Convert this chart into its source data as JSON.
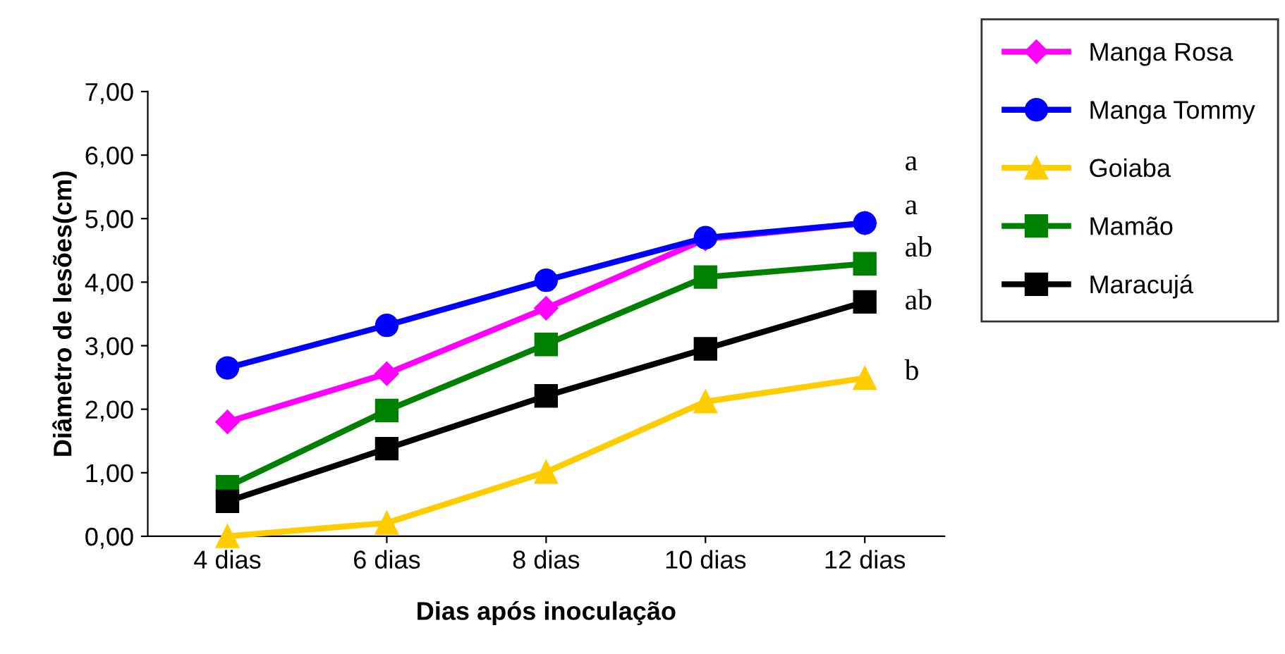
{
  "chart_data": {
    "type": "line",
    "xlabel": "Dias após inoculação",
    "ylabel": "Diâmetro de lesões(cm)",
    "categories": [
      "4 dias",
      "6 dias",
      "8 dias",
      "10 dias",
      "12 dias"
    ],
    "series": [
      {
        "name": "Manga Rosa",
        "color": "#ff00ff",
        "marker": "diamond",
        "values": [
          1.8,
          2.56,
          3.59,
          4.68,
          4.93
        ]
      },
      {
        "name": "Manga Tommy",
        "color": "#0000ff",
        "marker": "circle",
        "values": [
          2.65,
          3.32,
          4.03,
          4.7,
          4.93
        ]
      },
      {
        "name": "Goiaba",
        "color": "#ffcc00",
        "marker": "triangle",
        "values": [
          0.0,
          0.21,
          1.01,
          2.12,
          2.49
        ]
      },
      {
        "name": "Mamão",
        "color": "#008000",
        "marker": "square",
        "values": [
          0.78,
          1.98,
          3.02,
          4.08,
          4.29
        ]
      },
      {
        "name": "Maracujá",
        "color": "#000000",
        "marker": "square",
        "values": [
          0.55,
          1.38,
          2.21,
          2.95,
          3.69
        ]
      }
    ],
    "ylim": [
      0,
      7
    ],
    "yticks": [
      {
        "value": 0,
        "label": "0,00"
      },
      {
        "value": 1,
        "label": "1,00"
      },
      {
        "value": 2,
        "label": "2,00"
      },
      {
        "value": 3,
        "label": "3,00"
      },
      {
        "value": 4,
        "label": "4,00"
      },
      {
        "value": 5,
        "label": "5,00"
      },
      {
        "value": 6,
        "label": "6,00"
      },
      {
        "value": 7,
        "label": "7,00"
      }
    ],
    "annotations": [
      "a",
      "a",
      "ab",
      "ab",
      "b"
    ],
    "grid": false,
    "legend": "top right",
    "line_style": "solid"
  }
}
